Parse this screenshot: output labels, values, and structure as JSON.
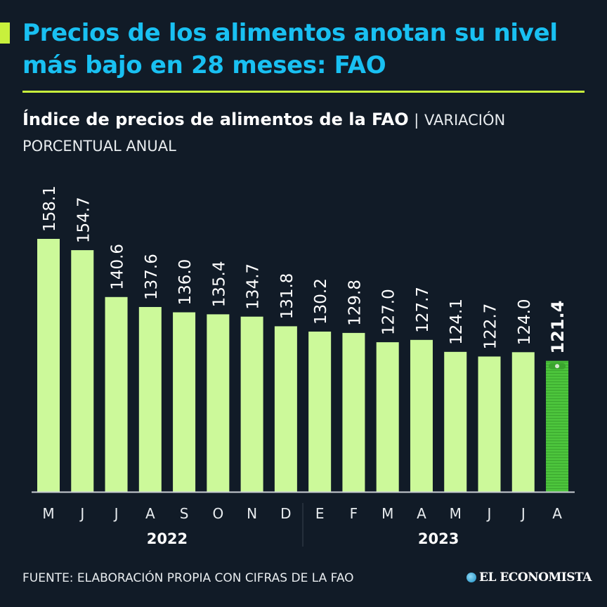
{
  "title": "Precios de los alimentos anotan su nivel más bajo en 28 meses: FAO",
  "subtitle_bold": "Índice de precios de alimentos de la FAO",
  "subtitle_sep": "|",
  "subtitle_light": "VARIACIÓN PORCENTUAL ANUAL",
  "source": "FUENTE: ELABORACIÓN PROPIA CON CIFRAS DE LA FAO",
  "logo": "EL ECONOMISTA",
  "colors": {
    "background": "#111b27",
    "title": "#19c0f2",
    "accent": "#c8f03c",
    "bar": "#ccf99a",
    "highlight_bar": "#4cc43c"
  },
  "chart_data": {
    "type": "bar",
    "title": "Índice de precios de alimentos de la FAO",
    "categories": [
      "M",
      "J",
      "J",
      "A",
      "S",
      "O",
      "N",
      "D",
      "E",
      "F",
      "M",
      "A",
      "M",
      "J",
      "J",
      "A"
    ],
    "years": [
      {
        "label": "2022",
        "months": 8
      },
      {
        "label": "2023",
        "months": 8
      }
    ],
    "values": [
      158.1,
      154.7,
      140.6,
      137.6,
      136.0,
      135.4,
      134.7,
      131.8,
      130.2,
      129.8,
      127.0,
      127.7,
      124.1,
      122.7,
      124.0,
      121.4
    ],
    "labels": [
      "158.1",
      "154.7",
      "140.6",
      "137.6",
      "136.0",
      "135.4",
      "134.7",
      "131.8",
      "130.2",
      "129.8",
      "127.0",
      "127.7",
      "124.1",
      "122.7",
      "124.0",
      "121.4"
    ],
    "highlight_index": 15,
    "highlight_icon": "banknote-stack-icon",
    "ylim": [
      82,
      158.1
    ],
    "grid": false
  }
}
